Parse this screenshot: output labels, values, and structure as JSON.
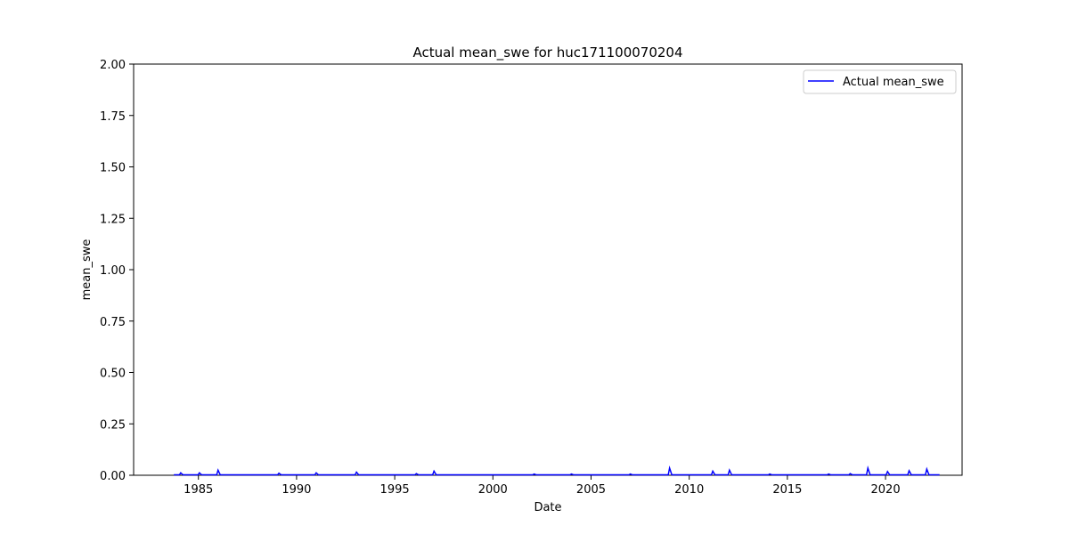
{
  "chart_data": {
    "type": "line",
    "title": "Actual mean_swe for huc171100070204",
    "xlabel": "Date",
    "ylabel": "mean_swe",
    "xlim": [
      1981.7,
      2023.9
    ],
    "ylim": [
      0,
      2.0
    ],
    "x_ticks": [
      1985,
      1990,
      1995,
      2000,
      2005,
      2010,
      2015,
      2020
    ],
    "y_ticks": [
      "0.00",
      "0.25",
      "0.50",
      "0.75",
      "1.00",
      "1.25",
      "1.50",
      "1.75",
      "2.00"
    ],
    "legend_position": "top-right",
    "grid": false,
    "series": [
      {
        "name": "Actual mean_swe",
        "color": "#0000ff",
        "data_start": 1983.75,
        "data_end": 2022.75,
        "baseline": 0.002,
        "spikes": [
          {
            "x": 1984.1,
            "y": 0.012
          },
          {
            "x": 1985.05,
            "y": 0.012
          },
          {
            "x": 1986.0,
            "y": 0.025
          },
          {
            "x": 1989.1,
            "y": 0.01
          },
          {
            "x": 1991.0,
            "y": 0.012
          },
          {
            "x": 1993.05,
            "y": 0.015
          },
          {
            "x": 1996.1,
            "y": 0.008
          },
          {
            "x": 1997.0,
            "y": 0.02
          },
          {
            "x": 2002.1,
            "y": 0.006
          },
          {
            "x": 2004.0,
            "y": 0.006
          },
          {
            "x": 2007.0,
            "y": 0.006
          },
          {
            "x": 2009.0,
            "y": 0.035
          },
          {
            "x": 2011.2,
            "y": 0.02
          },
          {
            "x": 2012.05,
            "y": 0.025
          },
          {
            "x": 2014.1,
            "y": 0.006
          },
          {
            "x": 2017.1,
            "y": 0.006
          },
          {
            "x": 2018.2,
            "y": 0.008
          },
          {
            "x": 2019.1,
            "y": 0.035
          },
          {
            "x": 2020.1,
            "y": 0.018
          },
          {
            "x": 2021.2,
            "y": 0.022
          },
          {
            "x": 2022.1,
            "y": 0.03
          }
        ]
      }
    ]
  }
}
